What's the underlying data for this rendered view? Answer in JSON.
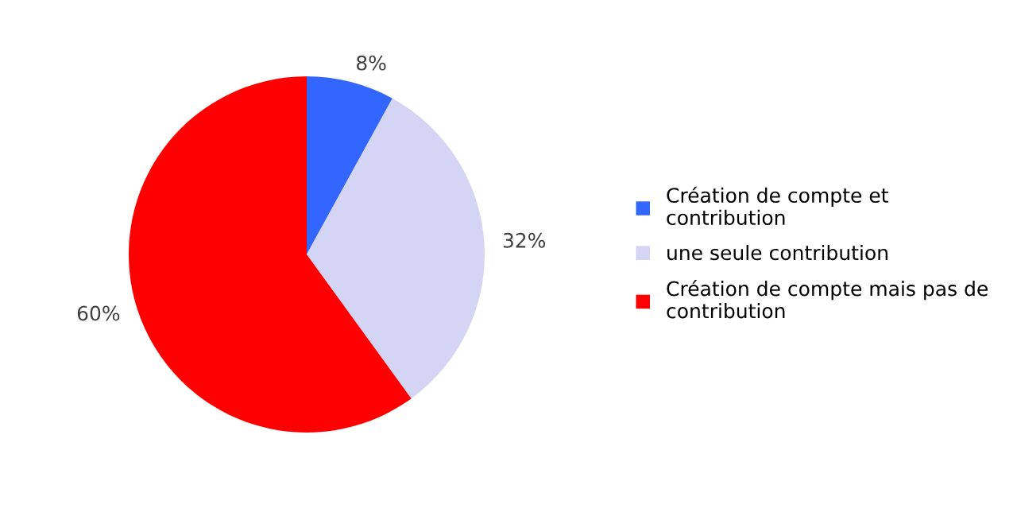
{
  "chart_data": {
    "type": "pie",
    "categories": [
      "Création de compte et contribution",
      "une seule contribution",
      "Création de compte mais pas de contribution"
    ],
    "values": [
      8,
      32,
      60
    ],
    "colors": [
      "#3366ff",
      "#d4d4f4",
      "#ff0000"
    ],
    "value_labels": [
      "8%",
      "32%",
      "60%"
    ],
    "legend": "right"
  }
}
